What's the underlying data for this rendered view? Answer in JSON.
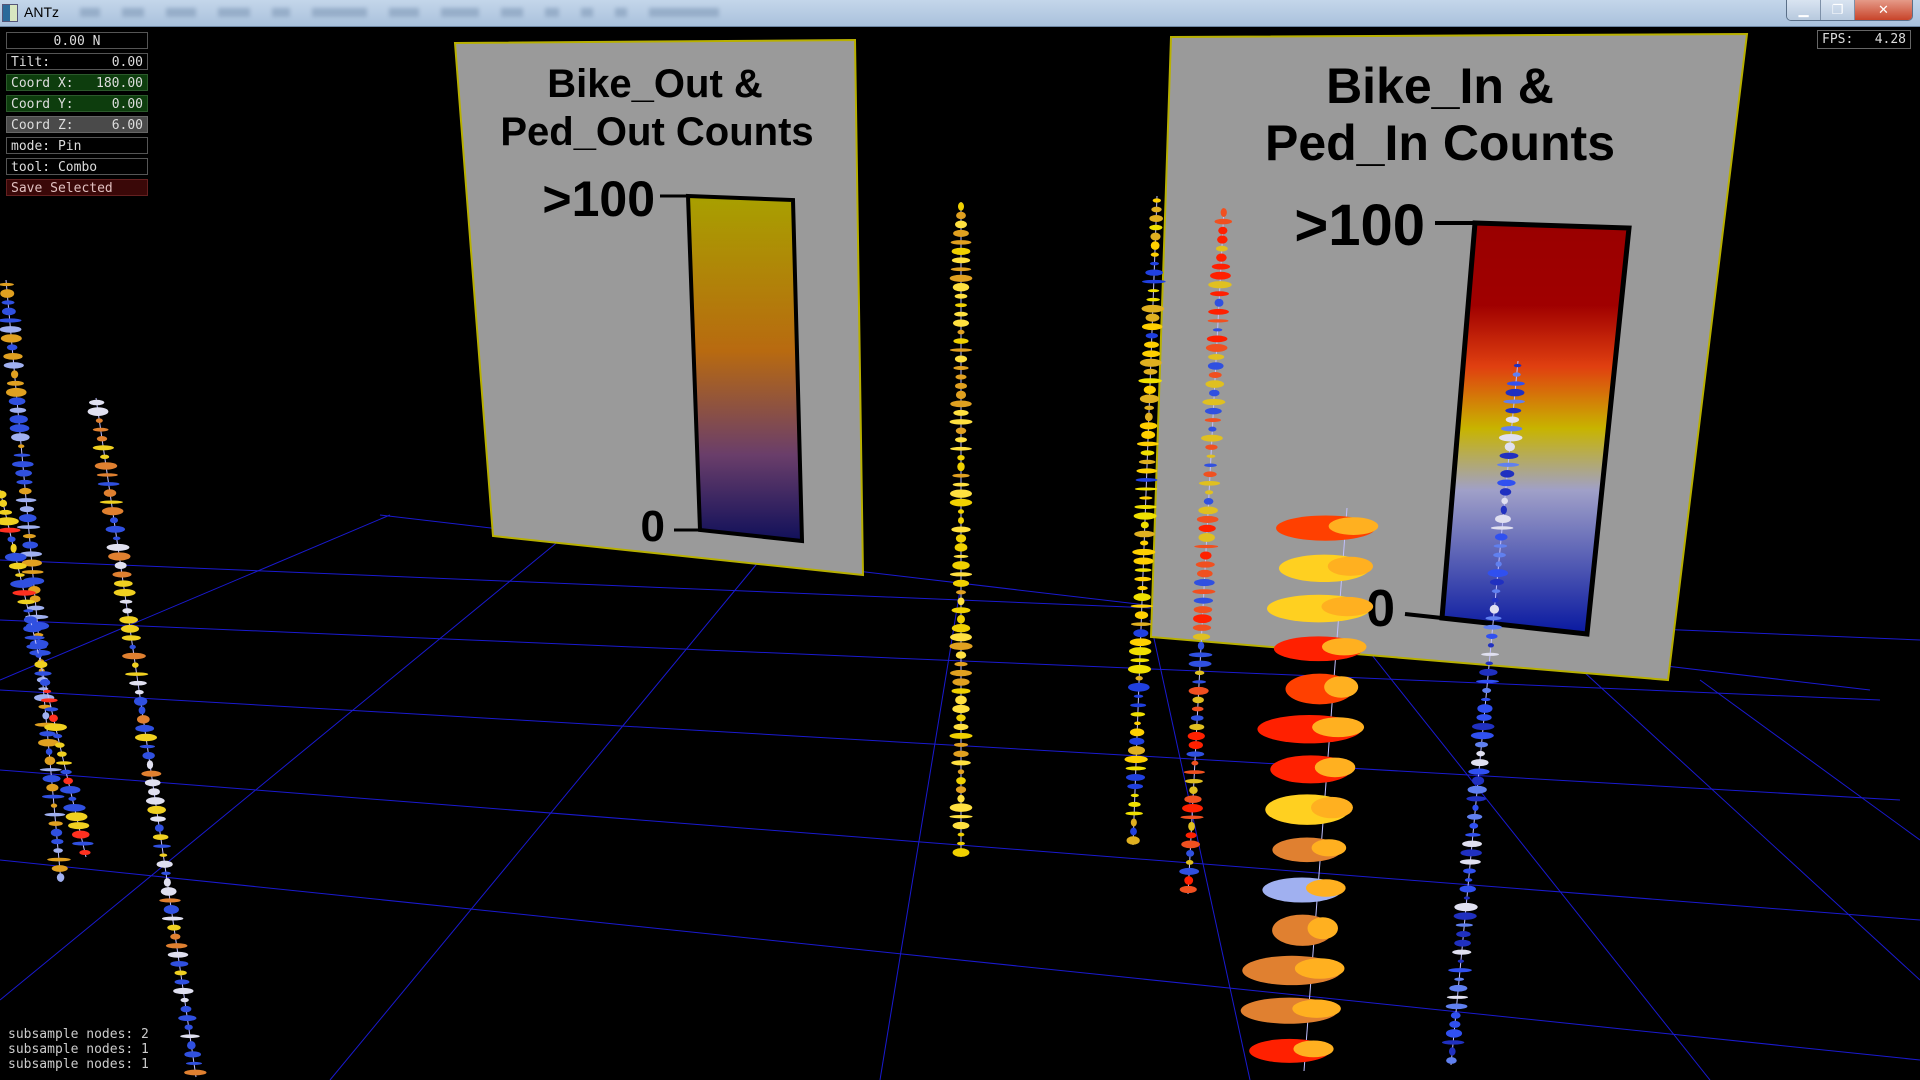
{
  "window": {
    "title": "ANTz",
    "minimize_icon": "minimize-icon",
    "maximize_icon": "restore-icon",
    "close_icon": "close-icon"
  },
  "hud": {
    "heading": "0.00 N",
    "tilt_label": "Tilt:",
    "tilt_value": "0.00",
    "coord_x_label": "Coord X:",
    "coord_x_value": "180.00",
    "coord_y_label": "Coord Y:",
    "coord_y_value": "0.00",
    "coord_z_label": "Coord Z:",
    "coord_z_value": "6.00",
    "mode": "mode: Pin",
    "tool": "tool: Combo",
    "save_selected": "Save Selected"
  },
  "fps": {
    "label": "FPS:",
    "value": "4.28"
  },
  "status_lines": [
    "subsample nodes: 2",
    "subsample nodes: 1",
    "subsample nodes: 1"
  ],
  "legend_out": {
    "title_line1": "Bike_Out &",
    "title_line2": "Ped_Out Counts",
    "max_label": ">100",
    "min_label": "0",
    "colors": [
      "#a8a000",
      "#b86a10",
      "#6a3e6a",
      "#10105a"
    ]
  },
  "legend_in": {
    "title_line1": "Bike_In &",
    "title_line2": "Ped_In Counts",
    "max_label": ">100",
    "min_label": "0",
    "colors": [
      "#9a0000",
      "#e04010",
      "#c8b400",
      "#a0a0c8",
      "#0818a0"
    ]
  },
  "colors": {
    "grid": "#1a1ad0",
    "background": "#000000",
    "billboard": "#9a9a9a",
    "billboard_border": "#b8b000"
  }
}
